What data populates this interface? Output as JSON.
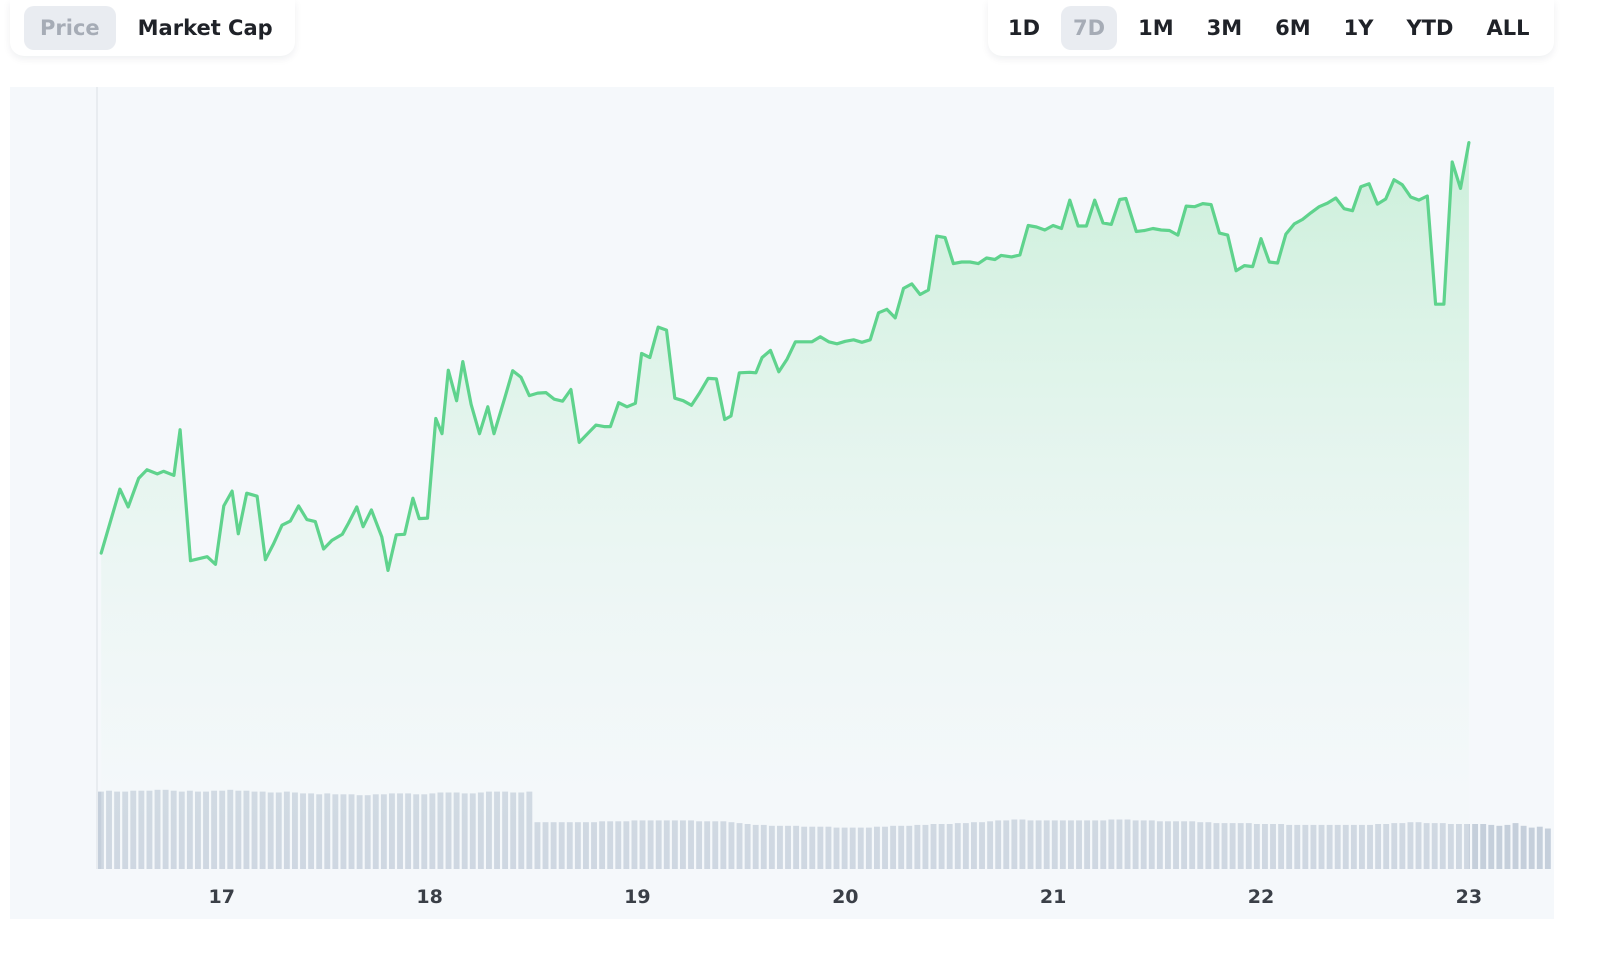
{
  "toggle": {
    "price_label": "Price",
    "market_cap_label": "Market Cap",
    "active": "Price"
  },
  "ranges": {
    "items": [
      "1D",
      "7D",
      "1M",
      "3M",
      "6M",
      "1Y",
      "YTD",
      "ALL"
    ],
    "active": "7D"
  },
  "colors": {
    "line": "#5fd38d",
    "area_top": "#c9efd8",
    "volume_bar": "#c5cfdb",
    "chart_bg": "#f5f8fb",
    "active_button_bg": "#e9ecf1"
  },
  "chart_data": {
    "type": "area",
    "xlabel": "",
    "ylabel": "",
    "xlim": [
      16.4,
      23.4
    ],
    "ylim": [
      0,
      100
    ],
    "x_ticks": [
      "17",
      "18",
      "19",
      "20",
      "21",
      "22",
      "23"
    ],
    "grid": false,
    "series": [
      {
        "values": [
          [
            16.42,
            23.6
          ],
          [
            16.51,
            36.2
          ],
          [
            16.55,
            32.7
          ],
          [
            16.6,
            38.3
          ],
          [
            16.64,
            40
          ],
          [
            16.69,
            39.2
          ],
          [
            16.72,
            39.7
          ],
          [
            16.77,
            38.9
          ],
          [
            16.8,
            47.9
          ],
          [
            16.85,
            22.1
          ],
          [
            16.93,
            22.9
          ],
          [
            16.97,
            21.4
          ],
          [
            17.01,
            32.9
          ],
          [
            17.05,
            35.8
          ],
          [
            17.08,
            27.4
          ],
          [
            17.12,
            35.4
          ],
          [
            17.17,
            34.8
          ],
          [
            17.21,
            22.3
          ],
          [
            17.25,
            25.5
          ],
          [
            17.29,
            29.1
          ],
          [
            17.33,
            29.9
          ],
          [
            17.37,
            32.9
          ],
          [
            17.41,
            30.2
          ],
          [
            17.45,
            29.8
          ],
          [
            17.49,
            24.4
          ],
          [
            17.53,
            26.1
          ],
          [
            17.58,
            27.3
          ],
          [
            17.61,
            29.5
          ],
          [
            17.65,
            32.7
          ],
          [
            17.68,
            28.8
          ],
          [
            17.72,
            32.1
          ],
          [
            17.77,
            26.8
          ],
          [
            17.8,
            20.2
          ],
          [
            17.84,
            27.2
          ],
          [
            17.88,
            27.3
          ],
          [
            17.92,
            34.4
          ],
          [
            17.95,
            30.4
          ],
          [
            17.99,
            30.5
          ],
          [
            18.03,
            50.1
          ],
          [
            18.06,
            47.1
          ],
          [
            18.09,
            59.6
          ],
          [
            18.13,
            53.6
          ],
          [
            18.16,
            61.3
          ],
          [
            18.2,
            52.9
          ],
          [
            18.24,
            47.1
          ],
          [
            18.28,
            52.4
          ],
          [
            18.31,
            47.1
          ],
          [
            18.36,
            53.9
          ],
          [
            18.4,
            59.5
          ],
          [
            18.44,
            58.2
          ],
          [
            18.48,
            54.6
          ],
          [
            18.52,
            55.1
          ],
          [
            18.56,
            55.2
          ],
          [
            18.6,
            53.9
          ],
          [
            18.64,
            53.5
          ],
          [
            18.68,
            55.8
          ],
          [
            18.72,
            45.4
          ],
          [
            18.75,
            46.7
          ],
          [
            18.8,
            48.8
          ],
          [
            18.84,
            48.5
          ],
          [
            18.87,
            48.5
          ],
          [
            18.91,
            53.2
          ],
          [
            18.95,
            52.4
          ],
          [
            18.99,
            53.1
          ],
          [
            19.02,
            62.9
          ],
          [
            19.06,
            62.1
          ],
          [
            19.1,
            68.1
          ],
          [
            19.14,
            67.5
          ],
          [
            19.18,
            54.1
          ],
          [
            19.22,
            53.6
          ],
          [
            19.26,
            52.7
          ],
          [
            19.3,
            55.2
          ],
          [
            19.34,
            58
          ],
          [
            19.38,
            57.9
          ],
          [
            19.42,
            49.9
          ],
          [
            19.45,
            50.6
          ],
          [
            19.49,
            59.1
          ],
          [
            19.54,
            59.2
          ],
          [
            19.57,
            59.1
          ],
          [
            19.6,
            62.1
          ],
          [
            19.64,
            63.5
          ],
          [
            19.68,
            59.3
          ],
          [
            19.72,
            61.8
          ],
          [
            19.76,
            65.2
          ],
          [
            19.8,
            65.2
          ],
          [
            19.84,
            65.2
          ],
          [
            19.88,
            66.2
          ],
          [
            19.92,
            65.2
          ],
          [
            19.96,
            64.8
          ],
          [
            20,
            65.3
          ],
          [
            20.04,
            65.6
          ],
          [
            20.08,
            65.1
          ],
          [
            20.12,
            65.6
          ],
          [
            20.16,
            70.9
          ],
          [
            20.2,
            71.6
          ],
          [
            20.24,
            69.9
          ],
          [
            20.28,
            75.7
          ],
          [
            20.32,
            76.6
          ],
          [
            20.36,
            74.5
          ],
          [
            20.4,
            75.4
          ],
          [
            20.44,
            86
          ],
          [
            20.48,
            85.7
          ],
          [
            20.52,
            80.6
          ],
          [
            20.56,
            80.9
          ],
          [
            20.6,
            80.9
          ],
          [
            20.64,
            80.6
          ],
          [
            20.68,
            81.7
          ],
          [
            20.72,
            81.4
          ],
          [
            20.75,
            82.2
          ],
          [
            20.8,
            81.9
          ],
          [
            20.84,
            82.3
          ],
          [
            20.88,
            88.1
          ],
          [
            20.92,
            87.8
          ],
          [
            20.96,
            87.2
          ],
          [
            21,
            88.1
          ],
          [
            21.04,
            87.5
          ],
          [
            21.08,
            93.1
          ],
          [
            21.12,
            88
          ],
          [
            21.16,
            88
          ],
          [
            21.2,
            93.1
          ],
          [
            21.24,
            88.6
          ],
          [
            21.28,
            88.3
          ],
          [
            21.32,
            93.2
          ],
          [
            21.35,
            93.4
          ],
          [
            21.4,
            86.9
          ],
          [
            21.44,
            87.1
          ],
          [
            21.48,
            87.5
          ],
          [
            21.52,
            87.2
          ],
          [
            21.56,
            87.1
          ],
          [
            21.6,
            86.2
          ],
          [
            21.64,
            91.9
          ],
          [
            21.68,
            91.8
          ],
          [
            21.72,
            92.4
          ],
          [
            21.76,
            92.2
          ],
          [
            21.8,
            86.6
          ],
          [
            21.84,
            86.2
          ],
          [
            21.88,
            79.2
          ],
          [
            21.92,
            80.2
          ],
          [
            21.96,
            80
          ],
          [
            22,
            85.5
          ],
          [
            22.04,
            80.9
          ],
          [
            22.08,
            80.7
          ],
          [
            22.12,
            86.4
          ],
          [
            22.16,
            88.4
          ],
          [
            22.2,
            89.3
          ],
          [
            22.24,
            90.6
          ],
          [
            22.28,
            91.8
          ],
          [
            22.32,
            92.5
          ],
          [
            22.36,
            93.5
          ],
          [
            22.4,
            91.4
          ],
          [
            22.44,
            91
          ],
          [
            22.48,
            95.7
          ],
          [
            22.52,
            96.3
          ],
          [
            22.56,
            92.3
          ],
          [
            22.6,
            93.3
          ],
          [
            22.64,
            97.1
          ],
          [
            22.68,
            96.1
          ],
          [
            22.72,
            93.7
          ],
          [
            22.76,
            93.1
          ],
          [
            22.8,
            93.9
          ],
          [
            22.84,
            72.6
          ],
          [
            22.88,
            72.6
          ],
          [
            22.92,
            100.6
          ],
          [
            22.96,
            95.4
          ],
          [
            23.0,
            104.4
          ]
        ]
      }
    ],
    "volume": [
      86,
      87,
      86,
      86,
      87,
      87,
      87,
      88,
      88,
      87,
      86,
      87,
      86,
      86,
      87,
      87,
      88,
      87,
      87,
      86,
      86,
      85,
      85,
      86,
      85,
      84,
      84,
      83,
      84,
      83,
      83,
      83,
      82,
      82,
      83,
      83,
      84,
      84,
      84,
      83,
      83,
      84,
      85,
      85,
      85,
      84,
      84,
      85,
      86,
      86,
      86,
      85,
      85,
      86,
      52,
      52,
      52,
      52,
      52,
      52,
      52,
      52,
      53,
      53,
      53,
      53,
      54,
      54,
      54,
      54,
      54,
      54,
      54,
      54,
      53,
      53,
      53,
      53,
      52,
      51,
      50,
      49,
      49,
      48,
      48,
      48,
      48,
      47,
      47,
      47,
      47,
      46,
      46,
      46,
      46,
      46,
      47,
      47,
      48,
      48,
      48,
      49,
      49,
      50,
      50,
      50,
      51,
      51,
      52,
      52,
      53,
      54,
      54,
      55,
      55,
      54,
      54,
      54,
      54,
      54,
      54,
      54,
      54,
      54,
      54,
      55,
      55,
      55,
      54,
      54,
      54,
      53,
      53,
      53,
      53,
      53,
      52,
      52,
      51,
      51,
      51,
      51,
      51,
      50,
      50,
      50,
      50,
      49,
      49,
      49,
      49,
      49,
      49,
      49,
      49,
      49,
      49,
      49,
      50,
      50,
      51,
      51,
      52,
      52,
      51,
      51,
      51,
      50,
      50,
      50,
      50,
      50,
      49,
      48,
      49,
      51,
      48,
      46,
      47,
      45
    ]
  }
}
